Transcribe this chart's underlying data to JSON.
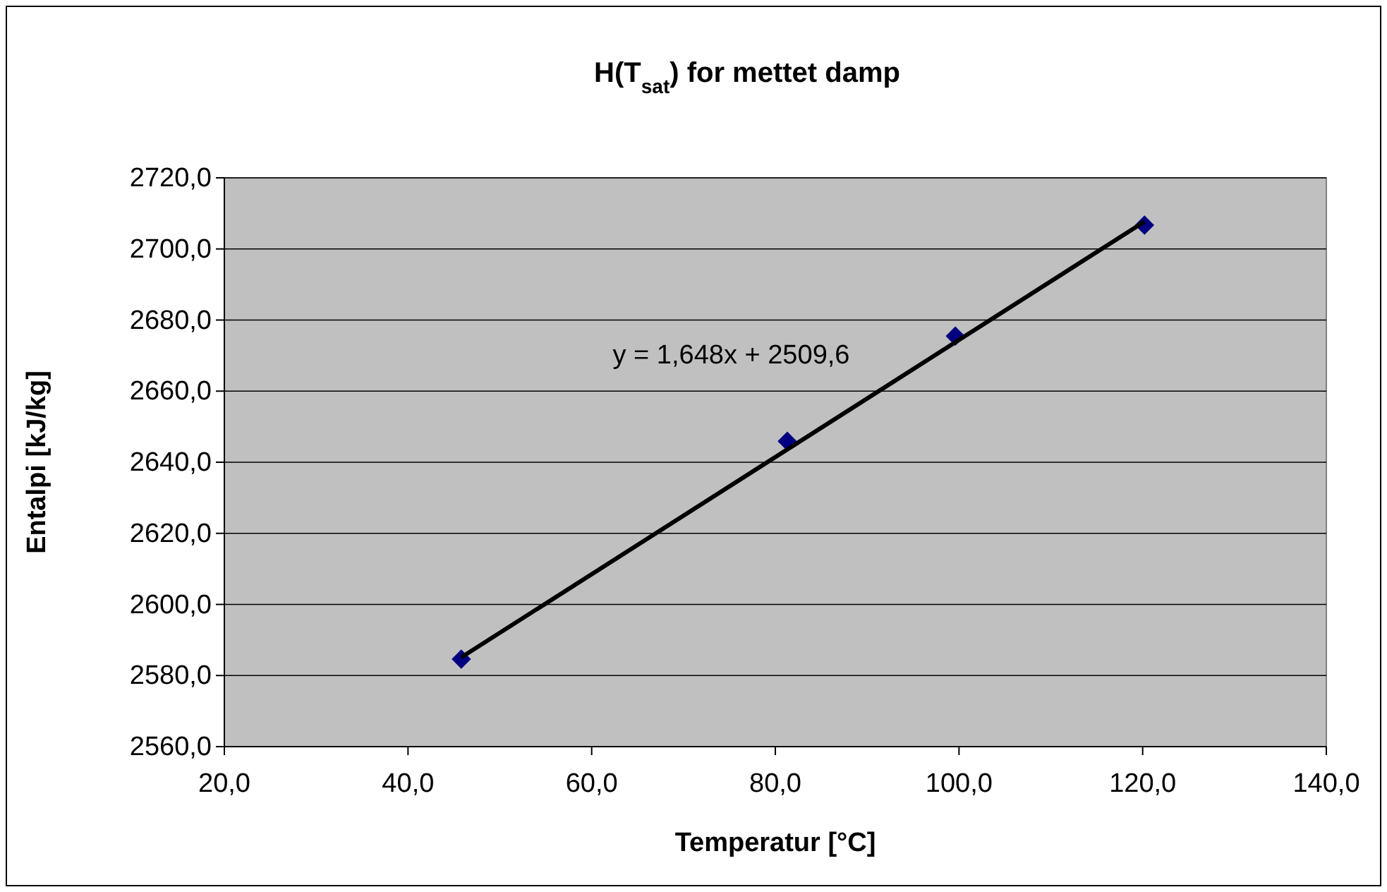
{
  "chart_data": {
    "type": "scatter",
    "title": "H(T$_{sat}$) for mettet damp",
    "xlabel": "Temperatur [°C]",
    "ylabel": "Entalpi [kJ/kg]",
    "series": [
      {
        "color": "#000080",
        "marker": "diamond",
        "x": [
          45.8,
          81.3,
          99.6,
          120.2
        ],
        "values": [
          2584.6,
          2645.9,
          2675.5,
          2706.7
        ]
      },
      {
        "type": "line",
        "color": "#000000",
        "marker": "none",
        "line_style": "solid",
        "x": [
          45.8,
          120.2
        ],
        "values": [
          2585.1,
          2707.7
        ]
      }
    ],
    "xlim": [
      20,
      140
    ],
    "xticks": [
      {
        "value": 20,
        "label": "20,0"
      },
      {
        "value": 40,
        "label": "40,0"
      },
      {
        "value": 60,
        "label": "60,0"
      },
      {
        "value": 80,
        "label": "80,0"
      },
      {
        "value": 100,
        "label": "100,0"
      },
      {
        "value": 120,
        "label": "120,0"
      },
      {
        "value": 140,
        "label": "140,0"
      }
    ],
    "ylim": [
      2560,
      2720
    ],
    "yticks": [
      {
        "value": 2560,
        "label": "2560,0"
      },
      {
        "value": 2580,
        "label": "2580,0"
      },
      {
        "value": 2600,
        "label": "2600,0"
      },
      {
        "value": 2620,
        "label": "2620,0"
      },
      {
        "value": 2640,
        "label": "2640,0"
      },
      {
        "value": 2660,
        "label": "2660,0"
      },
      {
        "value": 2680,
        "label": "2680,0"
      },
      {
        "value": 2700,
        "label": "2700,0"
      },
      {
        "value": 2720,
        "label": "2720,0"
      }
    ],
    "grid": "y",
    "annotations": [
      "y = 1,648x + 2509,6"
    ]
  }
}
